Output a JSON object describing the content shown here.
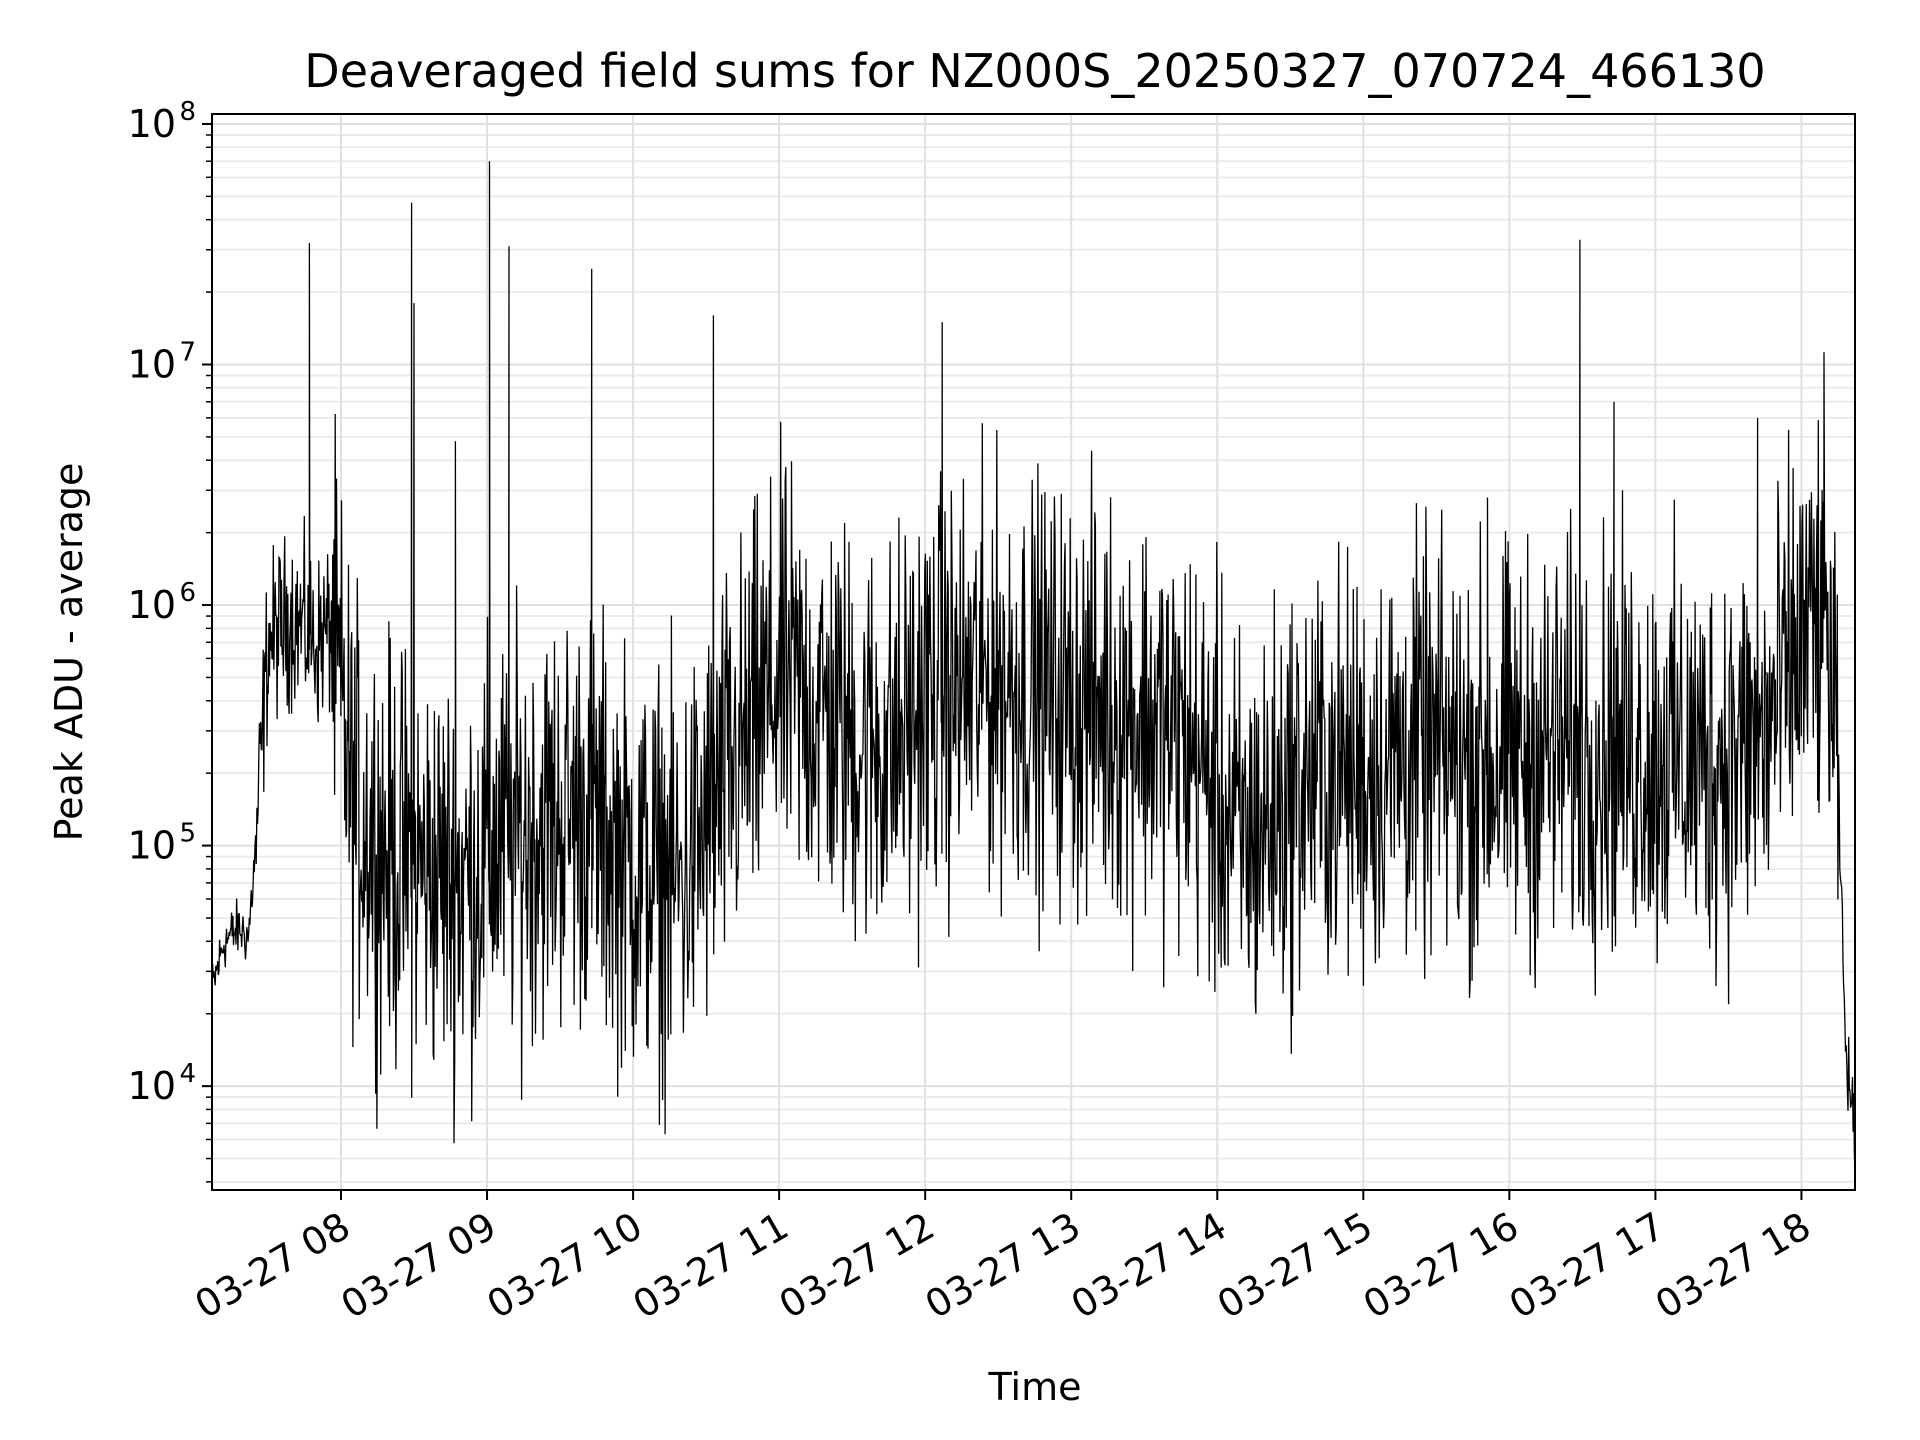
{
  "chart_data": {
    "type": "line",
    "title": "Deaveraged field sums for NZ000S_20250327_070724_466130",
    "xlabel": "Time",
    "ylabel": "Peak ADU - average",
    "yscale": "log",
    "ylim": [
      3700,
      110000000
    ],
    "xlim": [
      "2025-03-27 07:07",
      "2025-03-27 18:22"
    ],
    "grid": true,
    "line_color": "#000000",
    "x_ticks": [
      "03-27 08",
      "03-27 09",
      "03-27 10",
      "03-27 11",
      "03-27 12",
      "03-27 13",
      "03-27 14",
      "03-27 15",
      "03-27 16",
      "03-27 17",
      "03-27 18"
    ],
    "y_ticks": [
      {
        "base": "10",
        "exp": "4"
      },
      {
        "base": "10",
        "exp": "5"
      },
      {
        "base": "10",
        "exp": "6"
      },
      {
        "base": "10",
        "exp": "7"
      },
      {
        "base": "10",
        "exp": "8"
      }
    ],
    "series": [
      {
        "x": [
          "2025-03-27 07:07",
          "2025-03-27 07:12",
          "2025-03-27 07:18",
          "2025-03-27 07:22",
          "2025-03-27 07:25",
          "2025-03-27 07:30",
          "2025-03-27 07:40",
          "2025-03-27 07:50",
          "2025-03-27 07:56",
          "2025-03-27 08:05",
          "2025-03-27 08:20",
          "2025-03-27 08:35",
          "2025-03-27 08:50",
          "2025-03-27 09:05",
          "2025-03-27 09:20",
          "2025-03-27 09:40",
          "2025-03-27 10:00",
          "2025-03-27 10:20",
          "2025-03-27 10:40",
          "2025-03-27 11:00",
          "2025-03-27 11:20",
          "2025-03-27 11:30",
          "2025-03-27 11:45",
          "2025-03-27 12:00",
          "2025-03-27 12:30",
          "2025-03-27 13:00",
          "2025-03-27 13:30",
          "2025-03-27 13:50",
          "2025-03-27 14:10",
          "2025-03-27 14:40",
          "2025-03-27 15:00",
          "2025-03-27 15:20",
          "2025-03-27 15:50",
          "2025-03-27 16:20",
          "2025-03-27 16:50",
          "2025-03-27 17:20",
          "2025-03-27 17:45",
          "2025-03-27 18:00",
          "2025-03-27 18:10",
          "2025-03-27 18:15",
          "2025-03-27 18:18",
          "2025-03-27 18:22"
        ],
        "y": [
          25000,
          40000,
          45000,
          42000,
          100000,
          700000,
          900000,
          700000,
          800000,
          150000,
          90000,
          80000,
          70000,
          100000,
          120000,
          140000,
          80000,
          70000,
          200000,
          500000,
          350000,
          280000,
          250000,
          400000,
          500000,
          400000,
          350000,
          250000,
          100000,
          200000,
          200000,
          250000,
          220000,
          250000,
          250000,
          220000,
          280000,
          700000,
          900000,
          200000,
          15000,
          6000
        ]
      }
    ],
    "spikes": [
      {
        "x": "2025-03-27 07:47",
        "y": 32000000
      },
      {
        "x": "2025-03-27 08:29",
        "y": 47000000
      },
      {
        "x": "2025-03-27 08:30",
        "y": 18000000
      },
      {
        "x": "2025-03-27 08:47",
        "y": 4800000
      },
      {
        "x": "2025-03-27 09:01",
        "y": 70000000
      },
      {
        "x": "2025-03-27 09:09",
        "y": 31000000
      },
      {
        "x": "2025-03-27 09:43",
        "y": 25000000
      },
      {
        "x": "2025-03-27 10:33",
        "y": 16000000
      },
      {
        "x": "2025-03-27 12:07",
        "y": 15000000
      },
      {
        "x": "2025-03-27 15:51",
        "y": 2800000
      },
      {
        "x": "2025-03-27 16:29",
        "y": 33000000
      },
      {
        "x": "2025-03-27 16:43",
        "y": 7000000
      },
      {
        "x": "2025-03-27 17:42",
        "y": 6000000
      },
      {
        "x": "2025-03-27 18:09",
        "y": 2400000
      }
    ]
  }
}
